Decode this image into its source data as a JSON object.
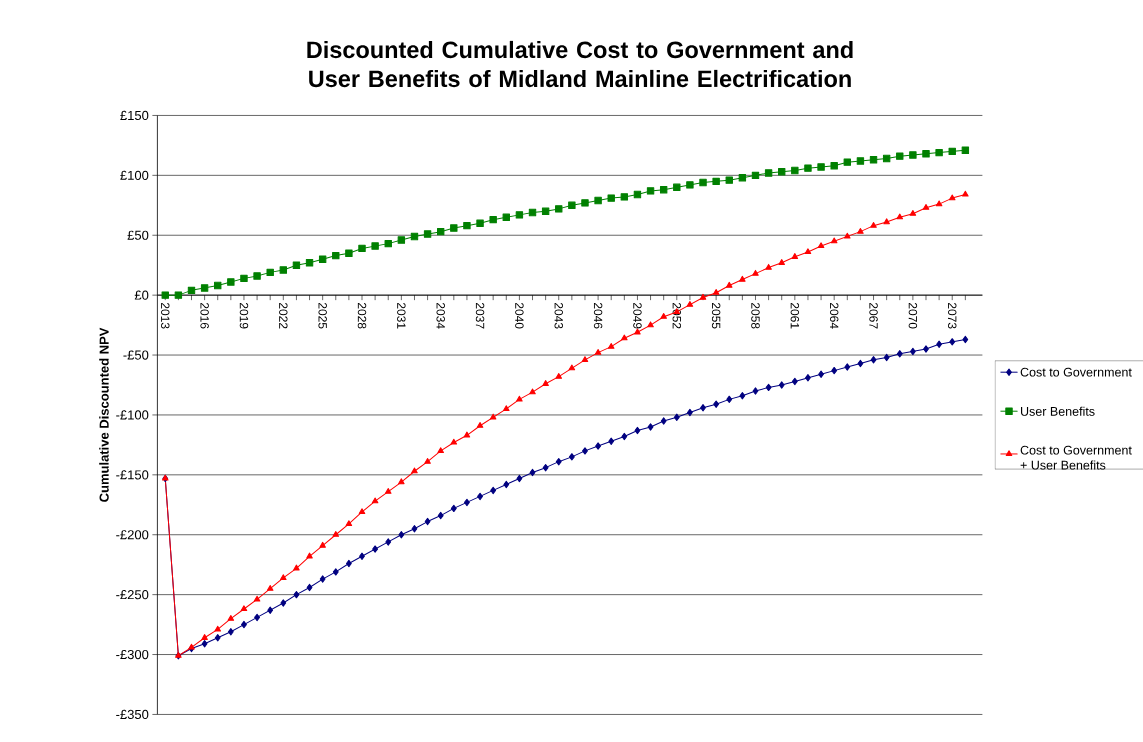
{
  "chart_data": {
    "type": "line",
    "title": "Discounted Cumulative Cost to Government and User Benefits of Midland Mainline Electrification",
    "ylabel": "Cumulative Discounted NPV",
    "categories": [
      "2013",
      null,
      null,
      "2016",
      null,
      null,
      "2019",
      null,
      null,
      "2022",
      null,
      null,
      "2025",
      null,
      null,
      "2028",
      null,
      null,
      "2031",
      null,
      null,
      "2034",
      null,
      null,
      "2037",
      null,
      null,
      "2040",
      null,
      null,
      "2043",
      null,
      null,
      "2046",
      null,
      null,
      "2049",
      null,
      null,
      "2052",
      null,
      null,
      "2055",
      null,
      null,
      "2058",
      null,
      null,
      "2061",
      null,
      null,
      "2064",
      null,
      null,
      "2067",
      null,
      null,
      "2070",
      null,
      null,
      "2073",
      null
    ],
    "series": [
      {
        "name": "Cost to Government",
        "color": "#000080",
        "marker": "diamond",
        "values": [
          -153,
          -301,
          -295,
          -291,
          -286,
          -281,
          -275,
          -269,
          -263,
          -257,
          -250,
          -244,
          -237,
          -231,
          -224,
          -218,
          -212,
          -206,
          -200,
          -195,
          -189,
          -184,
          -178,
          -173,
          -168,
          -163,
          -158,
          -153,
          -148,
          -144,
          -139,
          -135,
          -130,
          -126,
          -122,
          -118,
          -113,
          -110,
          -105,
          -102,
          -98,
          -94,
          -91,
          -87,
          -84,
          -80,
          -77,
          -75,
          -72,
          -69,
          -66,
          -63,
          -60,
          -57,
          -54,
          -52,
          -49,
          -47,
          -45,
          -41,
          -39,
          -37
        ]
      },
      {
        "name": "User Benefits",
        "color": "#008000",
        "marker": "square",
        "values": [
          0,
          0,
          4,
          6,
          8,
          11,
          14,
          16,
          19,
          21,
          25,
          27,
          30,
          33,
          35,
          39,
          41,
          43,
          46,
          49,
          51,
          53,
          56,
          58,
          60,
          63,
          65,
          67,
          69,
          70,
          72,
          75,
          77,
          79,
          81,
          82,
          84,
          87,
          88,
          90,
          92,
          94,
          95,
          96,
          98,
          100,
          102,
          103,
          104,
          106,
          107,
          108,
          111,
          112,
          113,
          114,
          116,
          117,
          118,
          119,
          120,
          121
        ]
      },
      {
        "name": "Cost to Government + User Benefits",
        "color": "#ff0000",
        "marker": "triangle",
        "values": [
          -153,
          -301,
          -294,
          -286,
          -279,
          -270,
          -262,
          -254,
          -245,
          -236,
          -228,
          -218,
          -209,
          -200,
          -191,
          -181,
          -172,
          -164,
          -156,
          -147,
          -139,
          -130,
          -123,
          -117,
          -109,
          -102,
          -95,
          -87,
          -81,
          -74,
          -68,
          -61,
          -54,
          -48,
          -43,
          -36,
          -31,
          -25,
          -18,
          -14,
          -8,
          -2,
          2,
          8,
          13,
          18,
          23,
          27,
          32,
          36,
          41,
          45,
          49,
          53,
          58,
          61,
          65,
          68,
          73,
          76,
          81,
          84
        ]
      }
    ],
    "ylim": [
      -350,
      150
    ],
    "yticks": [
      {
        "value": -350,
        "label": "-£350"
      },
      {
        "value": -300,
        "label": "-£300"
      },
      {
        "value": -250,
        "label": "-£250"
      },
      {
        "value": -200,
        "label": "-£200"
      },
      {
        "value": -150,
        "label": "-£150"
      },
      {
        "value": -100,
        "label": "-£100"
      },
      {
        "value": -50,
        "label": "-£50"
      },
      {
        "value": 0,
        "label": "£0"
      },
      {
        "value": 50,
        "label": "£50"
      },
      {
        "value": 100,
        "label": "£100"
      },
      {
        "value": 150,
        "label": "£150"
      }
    ],
    "grid": "y",
    "legend": "right",
    "line_style": "solid"
  }
}
